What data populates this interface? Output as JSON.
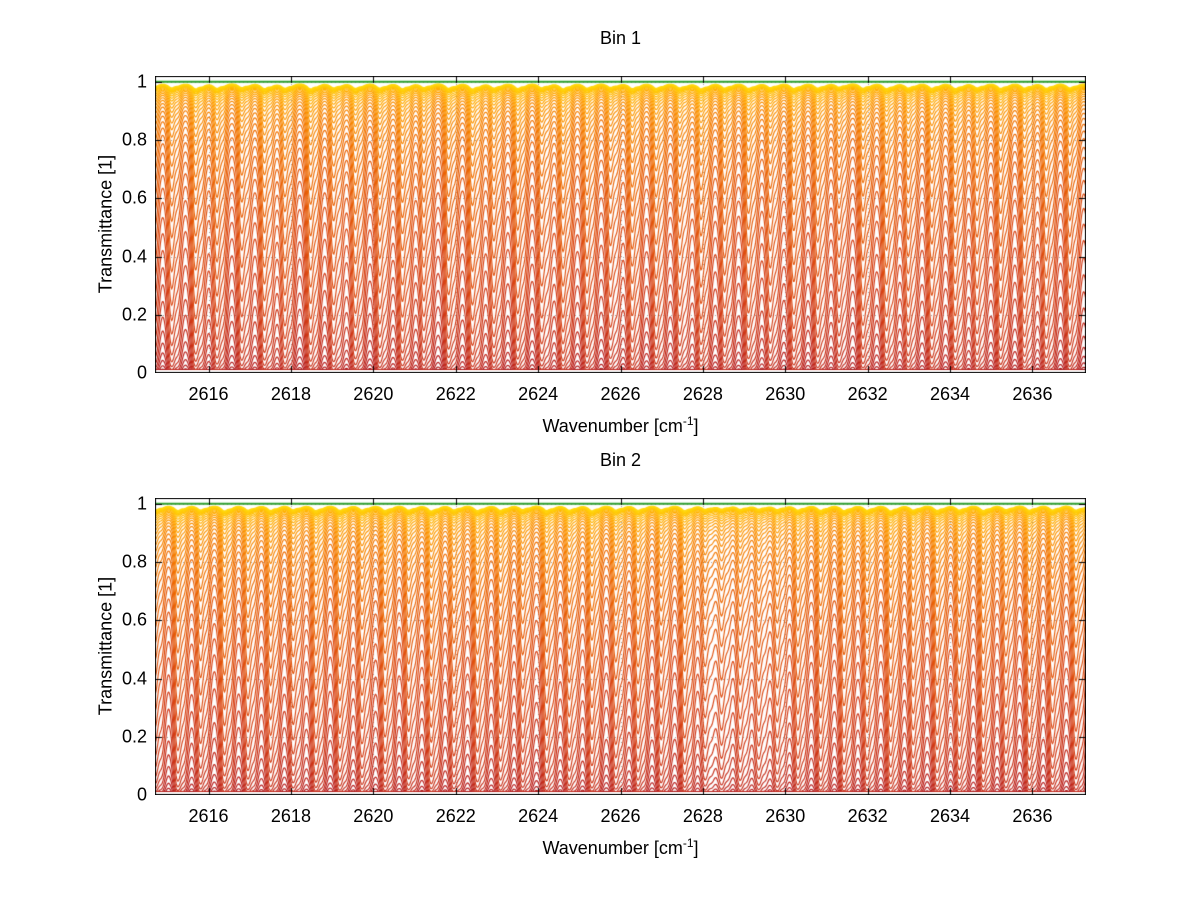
{
  "figure": {
    "background": "#ffffff"
  },
  "chart_data": [
    {
      "type": "line",
      "title": "Bin 1",
      "xlabel": "Wavenumber [cm^-1]",
      "xlabel_base": "Wavenumber [cm",
      "xlabel_sup": "-1",
      "xlabel_end": "]",
      "ylabel": "Transmittance [1]",
      "xlim": [
        2614.7,
        2637.3
      ],
      "ylim": [
        0,
        1.02
      ],
      "x_ticks": [
        2616,
        2618,
        2620,
        2622,
        2624,
        2626,
        2628,
        2630,
        2632,
        2634,
        2636
      ],
      "x_tick_labels": [
        "2616",
        "2618",
        "2620",
        "2622",
        "2624",
        "2626",
        "2628",
        "2630",
        "2632",
        "2634",
        "2636"
      ],
      "y_ticks": [
        0,
        0.2,
        0.4,
        0.6,
        0.8,
        1
      ],
      "y_tick_labels": [
        "0",
        "0.2",
        "0.4",
        "0.6",
        "0.8",
        "1"
      ],
      "grid": true,
      "n_curves": 46,
      "absorption_min": 0.02,
      "absorption_max": 28,
      "floor_transmittance": 0.012,
      "color_stops": [
        "#ffd60a",
        "#ffa000",
        "#ef6c00",
        "#d84315",
        "#b71c1c",
        "#7f0000"
      ],
      "baseline_color": "#2e9e2e",
      "line_width": 1.15,
      "lines": {
        "gamma": 0.11,
        "satellite_offset": 0.17,
        "satellite_strength": 0.45,
        "centers": [
          2614.55,
          2615.1,
          2615.68,
          2616.2,
          2616.8,
          2617.35,
          2617.85,
          2618.47,
          2619.03,
          2619.56,
          2620.15,
          2620.7,
          2621.22,
          2621.82,
          2622.4,
          2622.92,
          2623.5,
          2624.08,
          2624.6,
          2625.18,
          2625.75,
          2626.28,
          2626.86,
          2627.43,
          2627.95,
          2628.52,
          2629.1,
          2629.63,
          2630.2,
          2630.78,
          2631.3,
          2631.88,
          2632.45,
          2632.98,
          2633.55,
          2634.12,
          2634.65,
          2635.22,
          2635.8,
          2636.33,
          2636.9,
          2637.47
        ],
        "strengths": [
          0.95,
          0.85,
          1.0,
          0.9,
          0.8,
          0.95,
          0.88,
          1.0,
          0.82,
          0.92,
          0.87,
          0.96,
          0.78,
          0.9,
          1.0,
          0.85,
          0.93,
          0.8,
          0.97,
          0.88,
          0.75,
          0.95,
          0.9,
          0.83,
          0.98,
          0.86,
          0.92,
          0.79,
          0.94,
          0.88,
          0.7,
          0.9,
          0.96,
          0.84,
          0.9,
          0.95,
          0.82,
          0.93,
          0.87,
          0.9,
          0.85,
          0.9
        ]
      }
    },
    {
      "type": "line",
      "title": "Bin 2",
      "xlabel": "Wavenumber [cm^-1]",
      "xlabel_base": "Wavenumber [cm",
      "xlabel_sup": "-1",
      "xlabel_end": "]",
      "ylabel": "Transmittance [1]",
      "xlim": [
        2614.7,
        2637.3
      ],
      "ylim": [
        0,
        1.02
      ],
      "x_ticks": [
        2616,
        2618,
        2620,
        2622,
        2624,
        2626,
        2628,
        2630,
        2632,
        2634,
        2636
      ],
      "x_tick_labels": [
        "2616",
        "2618",
        "2620",
        "2622",
        "2624",
        "2626",
        "2628",
        "2630",
        "2632",
        "2634",
        "2636"
      ],
      "y_ticks": [
        0,
        0.2,
        0.4,
        0.6,
        0.8,
        1
      ],
      "y_tick_labels": [
        "0",
        "0.2",
        "0.4",
        "0.6",
        "0.8",
        "1"
      ],
      "grid": true,
      "n_curves": 46,
      "absorption_min": 0.02,
      "absorption_max": 28,
      "floor_transmittance": 0.012,
      "color_stops": [
        "#ffd60a",
        "#ffa000",
        "#ef6c00",
        "#d84315",
        "#b71c1c",
        "#7f0000"
      ],
      "baseline_color": "#2e9e2e",
      "line_width": 1.15,
      "lines": {
        "gamma": 0.11,
        "satellite_offset": 0.17,
        "satellite_strength": 0.45,
        "centers": [
          2614.7,
          2615.25,
          2615.8,
          2616.38,
          2616.95,
          2617.5,
          2618.05,
          2618.6,
          2619.18,
          2619.72,
          2620.28,
          2620.85,
          2621.4,
          2621.95,
          2622.52,
          2623.08,
          2623.62,
          2624.2,
          2624.75,
          2625.3,
          2625.88,
          2626.42,
          2626.98,
          2627.55,
          2628.05,
          2628.45,
          2628.9,
          2629.35,
          2629.8,
          2630.3,
          2630.85,
          2631.42,
          2631.98,
          2632.55,
          2633.1,
          2633.68,
          2634.22,
          2634.8,
          2635.35,
          2635.92,
          2636.48,
          2637.05,
          2637.6
        ],
        "strengths": [
          0.9,
          0.95,
          0.85,
          1.0,
          0.88,
          0.92,
          0.8,
          0.96,
          0.9,
          0.84,
          0.94,
          0.87,
          1.0,
          0.82,
          0.95,
          0.9,
          0.78,
          0.93,
          0.88,
          0.97,
          0.85,
          0.9,
          0.8,
          0.95,
          0.7,
          0.65,
          0.72,
          0.68,
          0.75,
          0.85,
          0.9,
          0.95,
          0.88,
          1.0,
          0.85,
          0.92,
          0.87,
          0.95,
          0.8,
          0.9,
          0.86,
          0.9,
          0.88
        ]
      }
    }
  ]
}
